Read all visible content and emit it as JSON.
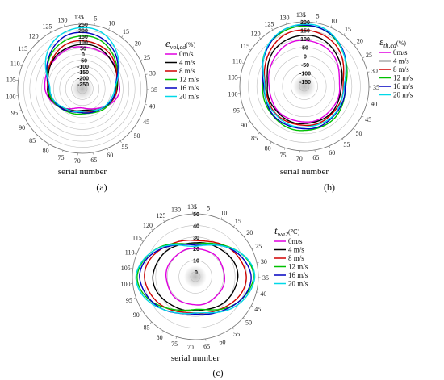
{
  "chart_data": [
    {
      "id": "a",
      "type": "polar-line",
      "panel_label": "(a)",
      "xlabel": "serial number",
      "theta_ticks": [
        "1",
        "5",
        "10",
        "15",
        "20",
        "25",
        "30",
        "35",
        "40",
        "45",
        "50",
        "55",
        "60",
        "65",
        "70",
        "75",
        "80",
        "85",
        "90",
        "95",
        "100",
        "105",
        "110",
        "115",
        "120",
        "125",
        "130",
        "135"
      ],
      "radial_ticks": [
        "-250",
        "-200",
        "-150",
        "-100",
        "-50",
        "0",
        "50",
        "100",
        "150",
        "200",
        "250"
      ],
      "rlim": [
        -250,
        250
      ],
      "legend": {
        "title_symbol": "e",
        "title_sub": "vol,cd",
        "title_unit": "(%)"
      },
      "series": [
        {
          "name": "0m/s",
          "color": "#e000e0",
          "profile": {
            "front": 60,
            "side": 10,
            "back": -130
          }
        },
        {
          "name": "4 m/s",
          "color": "#000000",
          "profile": {
            "front": 80,
            "side": -10,
            "back": -110
          }
        },
        {
          "name": "8 m/s",
          "color": "#d00000",
          "profile": {
            "front": 110,
            "side": -15,
            "back": -100
          }
        },
        {
          "name": "12 m/s",
          "color": "#00c000",
          "profile": {
            "front": 150,
            "side": -20,
            "back": -80
          }
        },
        {
          "name": "16 m/s",
          "color": "#0000c0",
          "profile": {
            "front": 180,
            "side": -25,
            "back": -90
          }
        },
        {
          "name": "20 m/s",
          "color": "#00d8e8",
          "profile": {
            "front": 220,
            "side": -30,
            "back": -100
          }
        }
      ]
    },
    {
      "id": "b",
      "type": "polar-line",
      "panel_label": "(b)",
      "xlabel": "serial number",
      "theta_ticks": [
        "1",
        "5",
        "10",
        "15",
        "20",
        "25",
        "30",
        "35",
        "40",
        "45",
        "50",
        "55",
        "60",
        "65",
        "70",
        "75",
        "80",
        "85",
        "90",
        "95",
        "100",
        "105",
        "110",
        "115",
        "120",
        "125",
        "130",
        "135"
      ],
      "radial_ticks": [
        "-150",
        "-100",
        "-50",
        "0",
        "50",
        "100",
        "150",
        "200"
      ],
      "rlim": [
        -150,
        200
      ],
      "legend": {
        "title_symbol": "ε",
        "title_sub": "th,cd",
        "title_unit": "(%)"
      },
      "series": [
        {
          "name": "0m/s",
          "color": "#e000e0",
          "profile": {
            "front": 90,
            "side": 20,
            "back": 30
          }
        },
        {
          "name": "4 m/s",
          "color": "#000000",
          "profile": {
            "front": 120,
            "side": 30,
            "back": 40
          }
        },
        {
          "name": "8 m/s",
          "color": "#d00000",
          "profile": {
            "front": 150,
            "side": 40,
            "back": 50
          }
        },
        {
          "name": "12 m/s",
          "color": "#00c000",
          "profile": {
            "front": 175,
            "side": 55,
            "back": 80
          }
        },
        {
          "name": "16 m/s",
          "color": "#0000c0",
          "profile": {
            "front": 180,
            "side": 50,
            "back": 70
          }
        },
        {
          "name": "20 m/s",
          "color": "#00d8e8",
          "profile": {
            "front": 185,
            "side": 45,
            "back": 60
          }
        }
      ]
    },
    {
      "id": "c",
      "type": "polar-line",
      "panel_label": "(c)",
      "xlabel": "serial number",
      "theta_ticks": [
        "1",
        "5",
        "10",
        "15",
        "20",
        "25",
        "30",
        "35",
        "40",
        "45",
        "50",
        "55",
        "60",
        "65",
        "70",
        "75",
        "80",
        "85",
        "90",
        "95",
        "100",
        "105",
        "110",
        "115",
        "120",
        "125",
        "130",
        "135"
      ],
      "radial_ticks": [
        "0",
        "10",
        "20",
        "30",
        "40",
        "50"
      ],
      "rlim": [
        0,
        50
      ],
      "legend": {
        "title_symbol": "t",
        "title_sub": "wa2",
        "title_unit": "(℃)"
      },
      "series": [
        {
          "name": "0m/s",
          "color": "#e000e0",
          "profile": {
            "front": 20,
            "side": 20,
            "back": 20
          }
        },
        {
          "name": "4 m/s",
          "color": "#000000",
          "profile": {
            "front": 25,
            "side": 31,
            "back": 25
          }
        },
        {
          "name": "8 m/s",
          "color": "#d00000",
          "profile": {
            "front": 27,
            "side": 38,
            "back": 27
          }
        },
        {
          "name": "12 m/s",
          "color": "#00c000",
          "profile": {
            "front": 24,
            "side": 44,
            "back": 24
          }
        },
        {
          "name": "16 m/s",
          "color": "#0000c0",
          "profile": {
            "front": 23,
            "side": 42,
            "back": 28
          }
        },
        {
          "name": "20 m/s",
          "color": "#00d8e8",
          "profile": {
            "front": 22,
            "side": 45,
            "back": 27
          }
        }
      ]
    }
  ]
}
